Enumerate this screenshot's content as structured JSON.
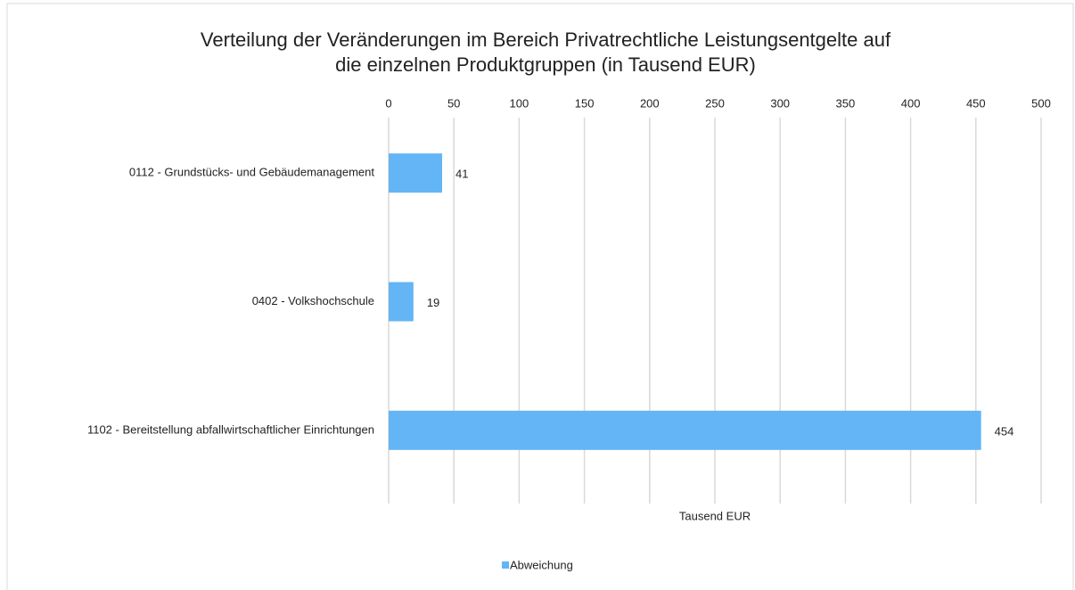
{
  "chart_data": {
    "type": "bar",
    "orientation": "horizontal",
    "title": [
      "Verteilung der Veränderungen im Bereich Privatrechtliche Leistungsentgelte auf",
      "die einzelnen Produktgruppen (in Tausend EUR)"
    ],
    "categories": [
      "0112 - Grundstücks- und Gebäudemanagement",
      "0402 - Volkshochschule",
      "1102 - Bereitstellung abfallwirtschaftlicher Einrichtungen"
    ],
    "series": [
      {
        "name": "Abweichung",
        "color": "#63b5f5",
        "values": [
          41,
          19,
          454
        ]
      }
    ],
    "x_label": "Tausend EUR",
    "xlim": [
      0,
      500
    ],
    "xticks": [
      0,
      50,
      100,
      150,
      200,
      250,
      300,
      350,
      400,
      450,
      500
    ],
    "grid": true,
    "legend": "bottom"
  }
}
